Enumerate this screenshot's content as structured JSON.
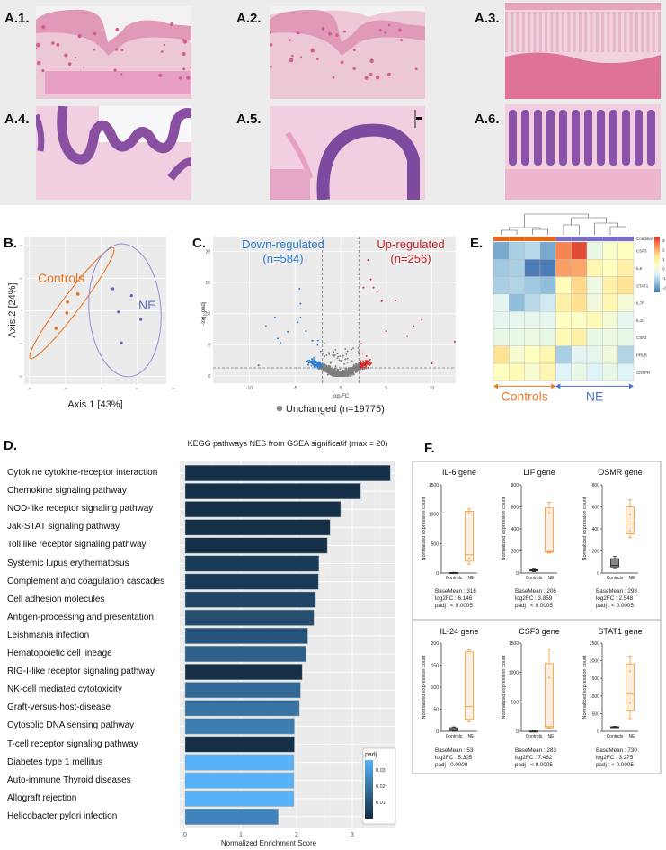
{
  "panel_a": {
    "images": [
      {
        "label": "A.1.",
        "tissue": "controls-low"
      },
      {
        "label": "A.2.",
        "tissue": "controls-low"
      },
      {
        "label": "A.3.",
        "tissue": "ne-low"
      },
      {
        "label": "A.4.",
        "tissue": "controls-high"
      },
      {
        "label": "A.5.",
        "tissue": "controls-high"
      },
      {
        "label": "A.6.",
        "tissue": "ne-high"
      }
    ]
  },
  "panel_b": {
    "label": "B.",
    "xlabel": "Axis.1 [43%]",
    "ylabel": "Axis.2 [24%]",
    "group_controls": "Controls",
    "group_ne": "NE",
    "colors": {
      "controls": "#e8711e",
      "ne": "#6a5acd",
      "ne_ellipse": "#8f8fd6"
    }
  },
  "panel_c": {
    "label": "C.",
    "down_label": "Down-regulated",
    "down_count": "(n=584)",
    "up_label": "Up-regulated",
    "up_count": "(n=256)",
    "unchanged_legend": "Unchanged (n=19775)",
    "xlabel": "log₂FC",
    "ylabel": "-log₁₀padj",
    "colors": {
      "down": "#2f7fd1",
      "up": "#d62728",
      "unchanged": "#7f7f7f"
    }
  },
  "panel_e": {
    "label": "E.",
    "condition_label": "Condition",
    "controls_label": "Controls",
    "ne_label": "NE",
    "colorbar_ticks": [
      "3",
      "2",
      "1",
      "0",
      "-1",
      "-2"
    ]
  },
  "panel_d": {
    "label": "D."
  },
  "panel_f": {
    "label": "F."
  },
  "chart_data": [
    {
      "id": "pca",
      "type": "scatter",
      "title": "",
      "xlabel": "Axis.1 [43%]",
      "ylabel": "Axis.2 [24%]",
      "xlim": [
        -25,
        25
      ],
      "ylim": [
        -25,
        25
      ],
      "series": [
        {
          "name": "Controls",
          "points": [
            [
              -12.6,
              -5.3
            ],
            [
              -9.6,
              -0.6
            ],
            [
              -9.4,
              2.7
            ],
            [
              -6.5,
              5.2
            ]
          ]
        },
        {
          "name": "NE",
          "points": [
            [
              3.2,
              6.8
            ],
            [
              8.4,
              4.7
            ],
            [
              4.8,
              -0.3
            ],
            [
              11.0,
              -2.6
            ],
            [
              5.6,
              -9.8
            ]
          ]
        }
      ]
    },
    {
      "id": "volcano",
      "type": "scatter",
      "xlabel": "log₂FC",
      "ylabel": "-log₁₀padj",
      "xlim": [
        -14,
        12.5
      ],
      "ylim": [
        -1,
        21
      ],
      "xticks": [
        -10,
        -5,
        0,
        5,
        10
      ],
      "yticks": [
        0,
        5,
        10,
        15,
        20
      ],
      "thresholds": {
        "log2fc": [
          -2,
          2
        ],
        "neglog10padj": 1.3
      },
      "counts": {
        "down": 584,
        "up": 256,
        "unchanged": 19775
      },
      "highlight_points": {
        "down": [
          [
            -4.5,
            14
          ],
          [
            -4.4,
            11.6
          ],
          [
            -7.2,
            9.4
          ],
          [
            -8.2,
            8
          ],
          [
            -4.4,
            9.4
          ],
          [
            -4.7,
            8.6
          ],
          [
            -5.8,
            7.1
          ],
          [
            -3.8,
            7.2
          ],
          [
            -6.9,
            6
          ],
          [
            -6.6,
            5.3
          ],
          [
            -9.0,
            1.7
          ]
        ],
        "up": [
          [
            3.0,
            18.6
          ],
          [
            3.3,
            15.5
          ],
          [
            3.6,
            14.2
          ],
          [
            4.0,
            13.5
          ],
          [
            4.5,
            12
          ],
          [
            2.5,
            14.2
          ],
          [
            6.0,
            12.1
          ],
          [
            8.9,
            9
          ],
          [
            8.0,
            8
          ],
          [
            12.5,
            5.5
          ],
          [
            7.3,
            6.4
          ],
          [
            5.0,
            7.2
          ],
          [
            10.0,
            2.0
          ]
        ]
      }
    },
    {
      "id": "heatmap",
      "type": "heatmap",
      "rows": [
        "CSF3",
        "IL6",
        "STAT1",
        "IL7R",
        "IL10",
        "CSF2",
        "PRLR",
        "CNTFR"
      ],
      "columns_condition": [
        "Controls",
        "Controls",
        "Controls",
        "Controls",
        "NE",
        "NE",
        "NE",
        "NE",
        "NE"
      ],
      "zlim": [
        -2.5,
        3.5
      ],
      "values": [
        [
          -1.8,
          -1.2,
          -1.0,
          -1.8,
          2.6,
          3.2,
          -0.2,
          0.3,
          0.5
        ],
        [
          -1.3,
          -1.2,
          -2.4,
          -2.4,
          2.3,
          2.2,
          0.8,
          0.5,
          1.0
        ],
        [
          -1.2,
          -1.1,
          -1.3,
          -1.5,
          0.6,
          1.6,
          -0.1,
          1.0,
          1.4
        ],
        [
          -0.4,
          -1.5,
          -1.0,
          -0.7,
          1.0,
          1.5,
          0.0,
          0.8,
          0.1
        ],
        [
          -0.3,
          -0.3,
          -0.3,
          -0.3,
          0.5,
          0.4,
          0.7,
          0.1,
          -0.3
        ],
        [
          -0.2,
          -0.2,
          -0.1,
          -0.2,
          0.7,
          1.0,
          -0.2,
          -0.1,
          -0.2
        ],
        [
          1.4,
          0.2,
          0.5,
          0.8,
          -1.2,
          -0.4,
          -0.3,
          0.0,
          -1.1
        ],
        [
          0.5,
          0.7,
          0.2,
          0.8,
          -0.5,
          -0.2,
          -0.5,
          -0.2,
          -0.5
        ]
      ]
    },
    {
      "id": "kegg",
      "type": "bar",
      "orientation": "horizontal",
      "title": "KEGG pathways NES from GSEA significatif (max = 20)",
      "xlabel": "Normalized Enrichment Score",
      "xlim": [
        0,
        3.9
      ],
      "xticks": [
        0,
        1,
        2,
        3
      ],
      "legend_title": "padj",
      "legend_ticks": [
        0.03,
        0.02,
        0.01
      ],
      "legend_position": "bottom-right",
      "categories": [
        "Cytokine cytokine-receptor interaction",
        "Chemokine signaling pathway",
        "NOD-like receptor signaling pathway",
        "Jak-STAT signaling pathway",
        "Toll like receptor signaling pathway",
        "Systemic lupus erythematosus",
        "Complement and coagulation cascades",
        "Cell adhesion molecules",
        "Antigen-processing and presentation",
        "Leishmania infection",
        "Hematopoietic cell lineage",
        "RIG-I-like receptor signaling pathway",
        "NK-cell mediated cytotoxicity",
        "Graft-versus-host-disease",
        "Cytosolic DNA sensing pathway",
        "T-cell receptor signaling pathway",
        "Diabetes type 1 mellitus",
        "Auto-immune Thyroid diseases",
        "Allograft rejection",
        "Helicobacter pylori infection"
      ],
      "values": [
        3.68,
        3.15,
        2.79,
        2.6,
        2.55,
        2.4,
        2.39,
        2.34,
        2.31,
        2.2,
        2.17,
        2.1,
        2.07,
        2.05,
        1.96,
        1.96,
        1.95,
        1.95,
        1.95,
        1.67
      ],
      "padj": [
        0.001,
        0.001,
        0.001,
        0.001,
        0.001,
        0.004,
        0.004,
        0.007,
        0.009,
        0.011,
        0.014,
        0.001,
        0.017,
        0.019,
        0.022,
        0.001,
        0.036,
        0.036,
        0.036,
        0.024
      ]
    },
    {
      "id": "boxplots",
      "type": "box",
      "ylabel": "Normalized expression count",
      "categories": [
        "Controls",
        "NE"
      ],
      "genes": [
        {
          "title": "IL-6 gene",
          "ymax": 1500,
          "yticks": [
            0,
            500,
            1000,
            1500
          ],
          "controls": [
            0,
            2,
            5,
            8,
            12
          ],
          "ne": [
            150,
            200,
            310,
            1050,
            1090
          ],
          "ne_points": [
            1020,
            250
          ],
          "stats": [
            "BaseMean : 316",
            "log2FC : 6.146",
            "padj : < 0.0005"
          ]
        },
        {
          "title": "LIF gene",
          "ymax": 800,
          "yticks": [
            0,
            200,
            400,
            600,
            800
          ],
          "controls": [
            12,
            18,
            25,
            30,
            35
          ],
          "ne": [
            180,
            188,
            195,
            590,
            640
          ],
          "ne_points": [
            545
          ],
          "stats": [
            "BaseMean : 206",
            "log2FC : 3.859",
            "padj : < 0.0005"
          ]
        },
        {
          "title": "OSMR gene",
          "ymax": 800,
          "yticks": [
            0,
            200,
            400,
            600,
            800
          ],
          "controls": [
            40,
            55,
            70,
            130,
            150
          ],
          "ne": [
            320,
            355,
            450,
            600,
            665
          ],
          "ne_points": [
            530,
            380
          ],
          "stats": [
            "BaseMean : 298",
            "log2FC : 2.548",
            "padj : < 0.0005"
          ]
        },
        {
          "title": "IL-24 gene",
          "ymax": 200,
          "yticks": [
            0,
            50,
            100,
            150,
            200
          ],
          "controls": [
            0,
            2,
            5,
            8,
            10
          ],
          "ne": [
            22,
            27,
            56,
            180,
            185
          ],
          "ne_points": [],
          "stats": [
            "BaseMean : 53",
            "log2FC : 5.305",
            "padj : 0.0009"
          ]
        },
        {
          "title": "CSF3 gene",
          "ymax": 1500,
          "yticks": [
            0,
            500,
            1000,
            1500
          ],
          "controls": [
            0,
            1,
            3,
            5,
            8
          ],
          "ne": [
            50,
            60,
            80,
            1150,
            1400
          ],
          "ne_points": [
            910
          ],
          "stats": [
            "BaseMean : 283",
            "log2FC : 7.462",
            "padj : < 0.0005"
          ]
        },
        {
          "title": "STAT1 gene",
          "ymax": 2500,
          "yticks": [
            0,
            500,
            1000,
            1500,
            2000,
            2500
          ],
          "controls": [
            100,
            110,
            120,
            130,
            140
          ],
          "ne": [
            360,
            590,
            1050,
            1910,
            2130
          ],
          "ne_points": [
            1700,
            800
          ],
          "stats": [
            "BaseMean : 730",
            "log2FC : 3.275",
            "padj : < 0.0005"
          ]
        }
      ]
    }
  ]
}
